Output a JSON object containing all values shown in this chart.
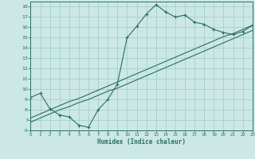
{
  "xlabel": "Humidex (Indice chaleur)",
  "bg_color": "#cce8e4",
  "grid_color": "#9eccc6",
  "line_color": "#2a6e62",
  "x_data": [
    0,
    1,
    2,
    3,
    4,
    5,
    6,
    7,
    8,
    9,
    10,
    11,
    12,
    13,
    14,
    15,
    16,
    17,
    18,
    19,
    20,
    21,
    22,
    23
  ],
  "y_main": [
    9.2,
    9.6,
    8.1,
    7.5,
    7.3,
    6.5,
    6.3,
    8.0,
    9.0,
    10.5,
    15.0,
    16.1,
    17.3,
    18.2,
    17.5,
    17.0,
    17.2,
    16.5,
    16.3,
    15.8,
    15.5,
    15.3,
    15.6,
    16.2
  ],
  "y_linear1": [
    7.2,
    7.6,
    8.0,
    8.4,
    8.8,
    9.1,
    9.5,
    9.9,
    10.3,
    10.7,
    11.1,
    11.5,
    11.9,
    12.3,
    12.7,
    13.1,
    13.5,
    13.9,
    14.3,
    14.7,
    15.1,
    15.4,
    15.8,
    16.2
  ],
  "y_linear2": [
    6.8,
    7.2,
    7.6,
    8.0,
    8.3,
    8.7,
    9.0,
    9.4,
    9.8,
    10.1,
    10.5,
    10.9,
    11.3,
    11.7,
    12.1,
    12.5,
    12.9,
    13.3,
    13.7,
    14.1,
    14.5,
    14.9,
    15.3,
    15.7
  ],
  "xlim": [
    0,
    23
  ],
  "ylim": [
    6,
    18.5
  ],
  "yticks": [
    6,
    7,
    8,
    9,
    10,
    11,
    12,
    13,
    14,
    15,
    16,
    17,
    18
  ],
  "xticks": [
    0,
    1,
    2,
    3,
    4,
    5,
    6,
    7,
    8,
    9,
    10,
    11,
    12,
    13,
    14,
    15,
    16,
    17,
    18,
    19,
    20,
    21,
    22,
    23
  ]
}
